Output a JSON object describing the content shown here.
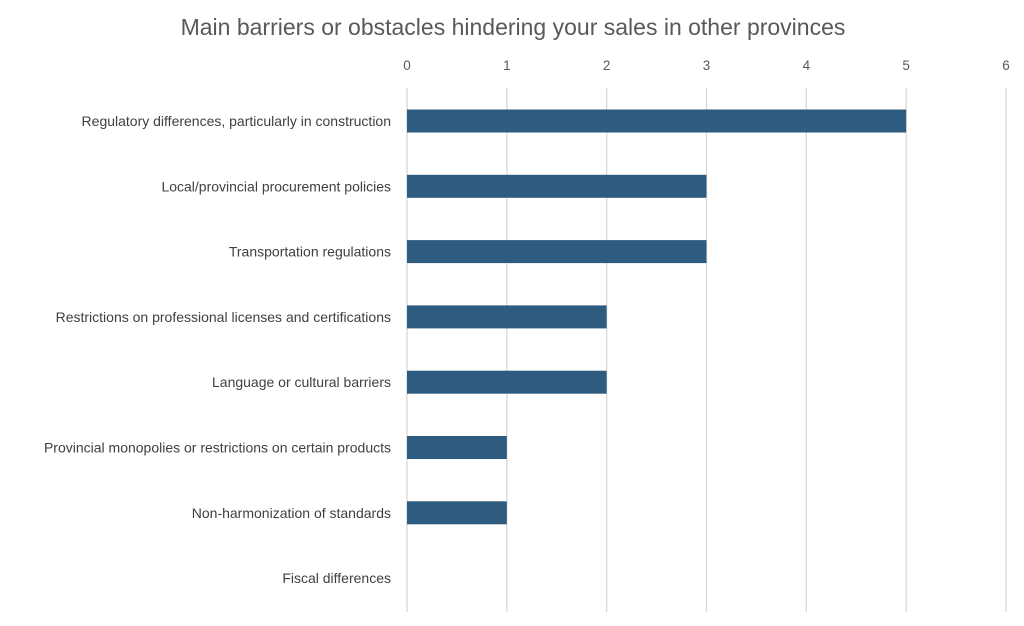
{
  "chart_data": {
    "type": "bar",
    "orientation": "horizontal",
    "title": "Main barriers or obstacles hindering your sales in other provinces",
    "xlabel": "",
    "ylabel": "",
    "categories": [
      "Regulatory differences, particularly in construction",
      "Local/provincial procurement policies",
      "Transportation regulations",
      "Restrictions on professional licenses and certifications",
      "Language or cultural barriers",
      "Provincial monopolies or restrictions on certain products",
      "Non-harmonization of standards",
      "Fiscal differences"
    ],
    "values": [
      5,
      3,
      3,
      2,
      2,
      1,
      1,
      0
    ],
    "xlim": [
      0,
      6
    ],
    "ticks": [
      "0",
      "1",
      "2",
      "3",
      "4",
      "5",
      "6"
    ],
    "axis_position": "top",
    "grid": true,
    "legend": "none",
    "colors": {
      "bar": "#2e5c80",
      "grid": "#d9d9d9",
      "text": "#595959"
    }
  }
}
